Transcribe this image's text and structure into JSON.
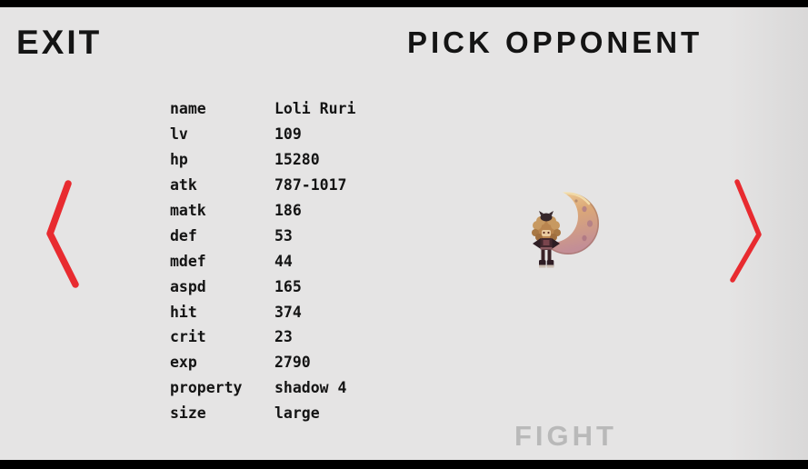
{
  "header": {
    "exit_label": "EXIT",
    "title": "PICK OPPONENT"
  },
  "stats": {
    "rows": [
      {
        "label": "name",
        "value": "Loli Ruri"
      },
      {
        "label": "lv",
        "value": "109"
      },
      {
        "label": "hp",
        "value": "15280"
      },
      {
        "label": "atk",
        "value": "787-1017"
      },
      {
        "label": "matk",
        "value": "186"
      },
      {
        "label": "def",
        "value": "53"
      },
      {
        "label": "mdef",
        "value": "44"
      },
      {
        "label": "aspd",
        "value": "165"
      },
      {
        "label": "hit",
        "value": "374"
      },
      {
        "label": "crit",
        "value": "23"
      },
      {
        "label": "exp",
        "value": "2790"
      },
      {
        "label": "property",
        "value": "shadow 4"
      },
      {
        "label": "size",
        "value": "large"
      }
    ]
  },
  "sprite": {
    "name": "Loli Ruri"
  },
  "footer": {
    "fight_label": "FIGHT"
  },
  "icons": {
    "prev_arrow": "chevron-left",
    "next_arrow": "chevron-right"
  },
  "colors": {
    "accent_red": "#e82b30",
    "text": "#141414",
    "fight_gray": "#b9b9b9",
    "background": "#e5e4e4",
    "bar_black": "#000000"
  }
}
